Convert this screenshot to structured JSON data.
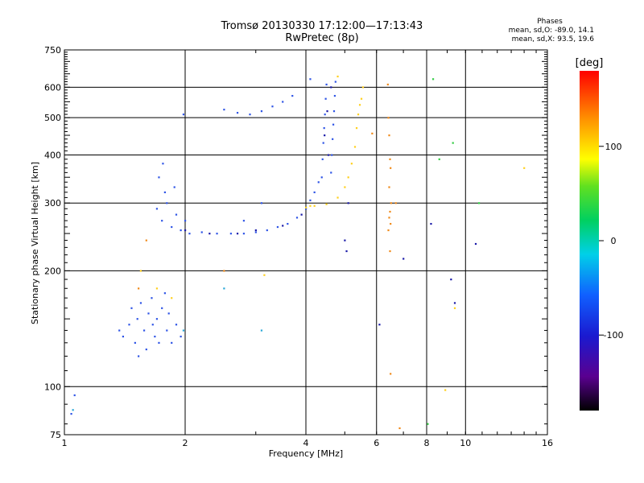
{
  "header": {
    "title": "Tromsø 20130330 17:12:00—17:13:43",
    "subtitle": "RwPretec (8p)"
  },
  "phase_stats": {
    "heading": "Phases",
    "line_o": "mean, sd,O: -89.0, 14.1",
    "line_x": "mean, sd,X:  93.5, 19.6"
  },
  "colorbar": {
    "unit": "[deg]",
    "ticks": [
      {
        "value": 100,
        "label": "100"
      },
      {
        "value": 0,
        "label": "0"
      },
      {
        "value": -100,
        "label": "-100"
      }
    ],
    "range": [
      -180,
      180
    ]
  },
  "chart_data": {
    "type": "scatter",
    "xlabel": "Frequency [MHz]",
    "ylabel": "Stationary phase Virtual Height [km]",
    "xscale": "log",
    "yscale": "log",
    "xlim": [
      1,
      16
    ],
    "ylim": [
      75,
      750
    ],
    "x_ticks": [
      {
        "value": 1,
        "label": "1"
      },
      {
        "value": 2,
        "label": "2"
      },
      {
        "value": 4,
        "label": "4"
      },
      {
        "value": 6,
        "label": "6"
      },
      {
        "value": 8,
        "label": "8"
      },
      {
        "value": 10,
        "label": "10"
      },
      {
        "value": 16,
        "label": "16"
      }
    ],
    "y_ticks": [
      {
        "value": 75,
        "label": "75"
      },
      {
        "value": 100,
        "label": "100"
      },
      {
        "value": 200,
        "label": "200"
      },
      {
        "value": 300,
        "label": "300"
      },
      {
        "value": 400,
        "label": "400"
      },
      {
        "value": 500,
        "label": "500"
      },
      {
        "value": 600,
        "label": "600"
      },
      {
        "value": 750,
        "label": "750"
      }
    ],
    "x_grid": [
      2,
      4,
      6,
      8,
      10
    ],
    "y_grid": [
      100,
      200,
      300,
      400,
      500,
      600
    ],
    "grid": true,
    "series": [
      {
        "color": "#2f55e6",
        "points": [
          [
            1.04,
            85
          ],
          [
            1.06,
            95
          ],
          [
            1.37,
            140
          ],
          [
            1.4,
            135
          ],
          [
            1.45,
            145
          ],
          [
            1.5,
            130
          ],
          [
            1.52,
            150
          ],
          [
            1.55,
            165
          ],
          [
            1.58,
            140
          ],
          [
            1.6,
            125
          ],
          [
            1.62,
            155
          ],
          [
            1.65,
            170
          ],
          [
            1.68,
            135
          ],
          [
            1.7,
            150
          ],
          [
            1.72,
            130
          ],
          [
            1.75,
            160
          ],
          [
            1.78,
            175
          ],
          [
            1.8,
            140
          ],
          [
            1.85,
            130
          ],
          [
            1.9,
            145
          ],
          [
            1.95,
            135
          ],
          [
            1.47,
            160
          ],
          [
            1.53,
            120
          ],
          [
            1.66,
            145
          ],
          [
            1.82,
            155
          ],
          [
            1.7,
            290
          ],
          [
            1.75,
            270
          ],
          [
            1.8,
            300
          ],
          [
            1.85,
            260
          ],
          [
            1.9,
            280
          ],
          [
            1.95,
            255
          ],
          [
            2.0,
            270
          ],
          [
            2.05,
            250
          ],
          [
            1.72,
            350
          ],
          [
            1.78,
            320
          ],
          [
            1.88,
            330
          ],
          [
            1.76,
            380
          ],
          [
            2.2,
            252
          ],
          [
            2.4,
            250
          ],
          [
            2.6,
            250
          ],
          [
            2.8,
            250
          ],
          [
            3.0,
            252
          ],
          [
            3.2,
            255
          ],
          [
            3.4,
            260
          ],
          [
            3.6,
            265
          ],
          [
            3.8,
            275
          ],
          [
            4.0,
            290
          ],
          [
            4.1,
            305
          ],
          [
            4.2,
            320
          ],
          [
            4.3,
            340
          ],
          [
            4.38,
            350
          ],
          [
            4.4,
            390
          ],
          [
            4.42,
            430
          ],
          [
            4.44,
            470
          ],
          [
            4.46,
            510
          ],
          [
            4.48,
            560
          ],
          [
            4.5,
            610
          ],
          [
            4.62,
            360
          ],
          [
            4.64,
            400
          ],
          [
            4.66,
            440
          ],
          [
            4.68,
            480
          ],
          [
            4.7,
            520
          ],
          [
            4.72,
            570
          ],
          [
            4.74,
            620
          ],
          [
            2.5,
            525
          ],
          [
            2.7,
            515
          ],
          [
            2.9,
            510
          ],
          [
            3.1,
            520
          ],
          [
            3.3,
            535
          ],
          [
            3.5,
            550
          ],
          [
            3.7,
            570
          ],
          [
            4.1,
            630
          ],
          [
            1.98,
            510
          ],
          [
            2.8,
            270
          ],
          [
            3.1,
            300
          ]
        ]
      },
      {
        "color": "#1a1aa8",
        "points": [
          [
            2.0,
            255
          ],
          [
            2.3,
            250
          ],
          [
            2.7,
            250
          ],
          [
            3.0,
            255
          ],
          [
            3.5,
            262
          ],
          [
            3.9,
            280
          ],
          [
            4.45,
            450
          ],
          [
            4.55,
            400
          ],
          [
            5.0,
            240
          ],
          [
            5.05,
            225
          ],
          [
            6.1,
            145
          ],
          [
            7.0,
            215
          ],
          [
            8.2,
            265
          ],
          [
            9.2,
            190
          ],
          [
            9.4,
            165
          ],
          [
            10.6,
            235
          ],
          [
            4.62,
            600
          ],
          [
            4.52,
            520
          ],
          [
            5.1,
            300
          ]
        ]
      },
      {
        "color": "#ffd01e",
        "points": [
          [
            4.0,
            292
          ],
          [
            4.1,
            295
          ],
          [
            4.2,
            295
          ],
          [
            4.5,
            298
          ],
          [
            4.8,
            310
          ],
          [
            5.0,
            330
          ],
          [
            5.1,
            350
          ],
          [
            5.2,
            380
          ],
          [
            5.3,
            420
          ],
          [
            5.35,
            470
          ],
          [
            5.4,
            510
          ],
          [
            5.45,
            540
          ],
          [
            5.5,
            560
          ],
          [
            5.55,
            600
          ],
          [
            1.55,
            200
          ],
          [
            1.7,
            180
          ],
          [
            1.85,
            170
          ],
          [
            3.15,
            195
          ],
          [
            9.4,
            160
          ],
          [
            8.9,
            98
          ],
          [
            14.0,
            370
          ],
          [
            4.8,
            640
          ]
        ]
      },
      {
        "color": "#f08a1a",
        "points": [
          [
            6.4,
            610
          ],
          [
            6.42,
            500
          ],
          [
            6.45,
            450
          ],
          [
            6.48,
            390
          ],
          [
            6.5,
            370
          ],
          [
            6.45,
            330
          ],
          [
            6.52,
            300
          ],
          [
            6.48,
            285
          ],
          [
            6.45,
            275
          ],
          [
            6.5,
            265
          ],
          [
            6.42,
            255
          ],
          [
            6.48,
            225
          ],
          [
            6.5,
            108
          ],
          [
            6.7,
            300
          ],
          [
            1.53,
            180
          ],
          [
            2.5,
            200
          ],
          [
            1.6,
            240
          ],
          [
            6.85,
            78
          ],
          [
            5.85,
            455
          ]
        ]
      },
      {
        "color": "#33cc44",
        "points": [
          [
            8.3,
            630
          ],
          [
            8.6,
            390
          ],
          [
            9.3,
            430
          ],
          [
            10.8,
            300
          ],
          [
            8.05,
            80
          ]
        ]
      },
      {
        "color": "#2aa8d8",
        "points": [
          [
            3.1,
            140
          ],
          [
            2.5,
            180
          ],
          [
            1.05,
            87
          ],
          [
            1.98,
            140
          ]
        ]
      }
    ]
  }
}
